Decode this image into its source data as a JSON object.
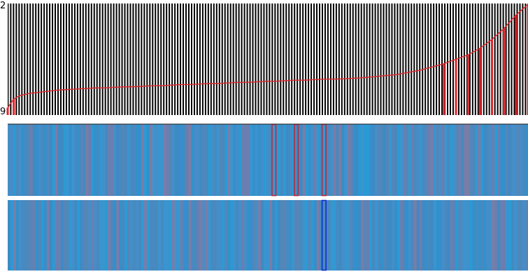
{
  "chart_data": [
    {
      "type": "line",
      "title": "",
      "axis": {
        "top_label": "2",
        "bottom_label": "9"
      },
      "background_color": "#000000",
      "bar_color": "#ffffff",
      "line_color": "#e0242a",
      "grid": false,
      "bar_count": 187,
      "series": [
        {
          "values": [
            0.06,
            0.14,
            0.17,
            0.19,
            0.2,
            0.21,
            0.22,
            0.225,
            0.23,
            0.235,
            0.24,
            0.24,
            0.245,
            0.25,
            0.25,
            0.255,
            0.26,
            0.26,
            0.265,
            0.27,
            0.27,
            0.275,
            0.28,
            0.28,
            0.285,
            0.29,
            0.29,
            0.295,
            0.3,
            0.3,
            0.305,
            0.31,
            0.31,
            0.315,
            0.32,
            0.32,
            0.325,
            0.33,
            0.34,
            0.35,
            0.36,
            0.38,
            0.4,
            0.43,
            0.46,
            0.5,
            0.54,
            0.6,
            0.68,
            0.78,
            0.9,
            1.0
          ]
        }
      ]
    },
    {
      "type": "heatmap",
      "rows": [
        {
          "name": "",
          "highlight_color": "#c0283a",
          "highlighted_columns": [
            95,
            103,
            113
          ],
          "columns": 187,
          "base_color": "#3a8ec6"
        },
        {
          "name": "",
          "highlight_color": "#0a2fd6",
          "highlighted_columns": [
            113
          ],
          "columns": 187,
          "base_color": "#3a8ec6"
        }
      ],
      "palette": [
        "#2b9ad4",
        "#3390cc",
        "#3e8ac4",
        "#4889bf",
        "#5586b8",
        "#6a7fb0",
        "#7a7da8",
        "#3a95cf",
        "#458ec8"
      ]
    }
  ]
}
